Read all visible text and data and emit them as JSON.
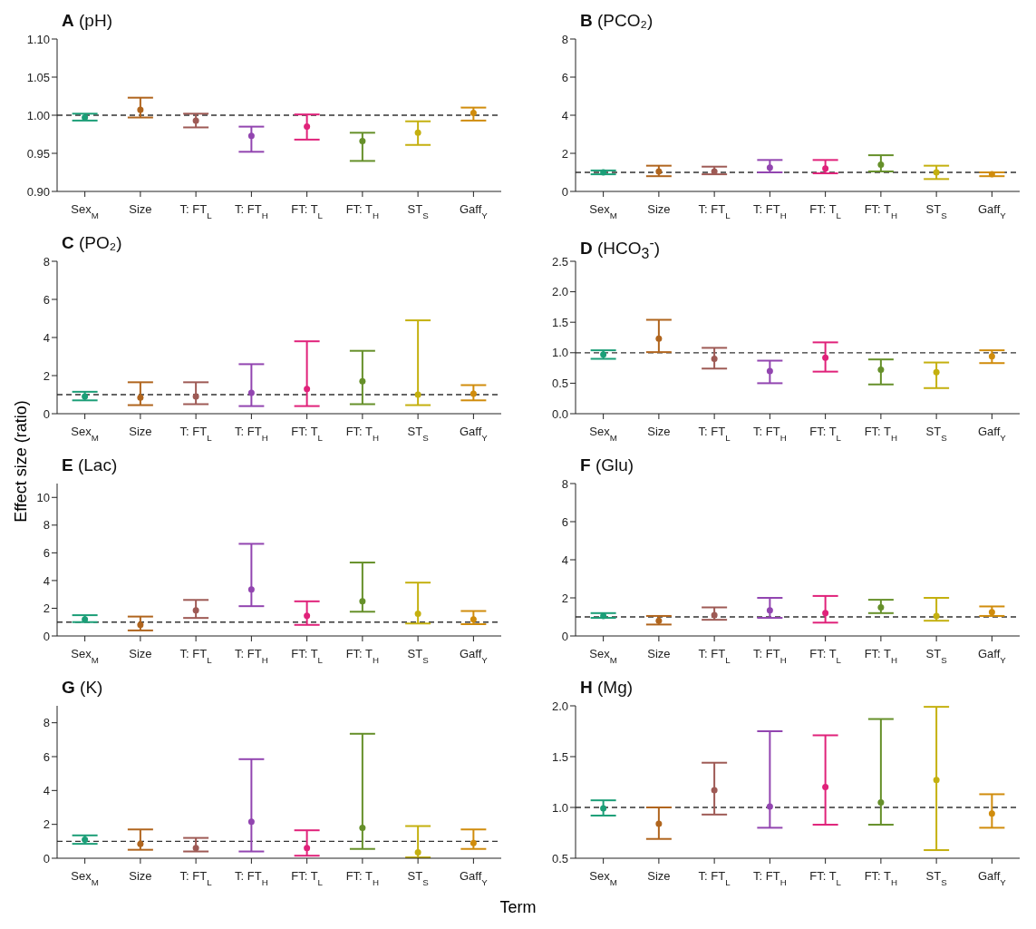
{
  "chart_data": [
    {
      "type": "scatter",
      "title": "A (pH)",
      "categories": [
        "Sex$_{M}$",
        "Size",
        "T: FT$_{L}$",
        "T: FT$_{H}$",
        "FT: T$_{L}$",
        "FT: T$_{H}$",
        "ST$_{S}$",
        "Gaff$_{Y}$"
      ],
      "colors": [
        "#1b9e77",
        "#b0651e",
        "#9e5a55",
        "#9245b0",
        "#e0227a",
        "#66902a",
        "#c4b00f",
        "#d08c0c"
      ],
      "marker": "circle",
      "values": [
        0.997,
        1.007,
        0.993,
        0.973,
        0.985,
        0.966,
        0.977,
        1.003
      ],
      "errors": [
        [
          0.993,
          1.002
        ],
        [
          0.997,
          1.023
        ],
        [
          0.984,
          1.002
        ],
        [
          0.952,
          0.985
        ],
        [
          0.968,
          1.001
        ],
        [
          0.94,
          0.977
        ],
        [
          0.961,
          0.992
        ],
        [
          0.993,
          1.01
        ]
      ],
      "ylim": [
        0.9,
        1.1
      ],
      "yticks": [
        {
          "value": 0.9,
          "label": "0.90"
        },
        {
          "value": 0.95,
          "label": "0.95"
        },
        {
          "value": 1,
          "label": "1.00"
        },
        {
          "value": 1.05,
          "label": "1.05"
        },
        {
          "value": 1.1,
          "label": "1.10"
        }
      ],
      "ref_lines": [
        {
          "axis": "y",
          "value": 1,
          "line_style": "dashed"
        }
      ]
    },
    {
      "type": "scatter",
      "title": "B (PCO₂)",
      "categories": [
        "Sex$_{M}$",
        "Size",
        "T: FT$_{L}$",
        "T: FT$_{H}$",
        "FT: T$_{L}$",
        "FT: T$_{H}$",
        "ST$_{S}$",
        "Gaff$_{Y}$"
      ],
      "colors": [
        "#1b9e77",
        "#b0651e",
        "#9e5a55",
        "#9245b0",
        "#e0227a",
        "#66902a",
        "#c4b00f",
        "#d08c0c"
      ],
      "marker": "circle",
      "values": [
        1.0,
        1.05,
        1.05,
        1.25,
        1.2,
        1.4,
        1.0,
        0.9
      ],
      "errors": [
        [
          0.9,
          1.1
        ],
        [
          0.8,
          1.35
        ],
        [
          0.9,
          1.3
        ],
        [
          1.0,
          1.65
        ],
        [
          0.95,
          1.65
        ],
        [
          1.05,
          1.9
        ],
        [
          0.65,
          1.35
        ],
        [
          0.8,
          1.0
        ]
      ],
      "ylim": [
        0,
        8
      ],
      "yticks": [
        0,
        2,
        4,
        6,
        8
      ],
      "ref_lines": [
        {
          "axis": "y",
          "value": 1,
          "line_style": "dashed"
        }
      ]
    },
    {
      "type": "scatter",
      "title": "C (PO₂)",
      "categories": [
        "Sex$_{M}$",
        "Size",
        "T: FT$_{L}$",
        "T: FT$_{H}$",
        "FT: T$_{L}$",
        "FT: T$_{H}$",
        "ST$_{S}$",
        "Gaff$_{Y}$"
      ],
      "colors": [
        "#1b9e77",
        "#b0651e",
        "#9e5a55",
        "#9245b0",
        "#e0227a",
        "#66902a",
        "#c4b00f",
        "#d08c0c"
      ],
      "marker": "circle",
      "values": [
        0.9,
        0.85,
        0.9,
        1.1,
        1.3,
        1.7,
        1.0,
        1.05
      ],
      "errors": [
        [
          0.7,
          1.15
        ],
        [
          0.45,
          1.65
        ],
        [
          0.5,
          1.65
        ],
        [
          0.4,
          2.6
        ],
        [
          0.4,
          3.8
        ],
        [
          0.5,
          3.3
        ],
        [
          0.45,
          4.9
        ],
        [
          0.7,
          1.5
        ]
      ],
      "ylim": [
        0,
        8
      ],
      "yticks": [
        0,
        2,
        4,
        6,
        8
      ],
      "ref_lines": [
        {
          "axis": "y",
          "value": 1,
          "line_style": "dashed"
        }
      ]
    },
    {
      "type": "scatter",
      "title": "D (HCO$_{3}$$^{-}$)",
      "categories": [
        "Sex$_{M}$",
        "Size",
        "T: FT$_{L}$",
        "T: FT$_{H}$",
        "FT: T$_{L}$",
        "FT: T$_{H}$",
        "ST$_{S}$",
        "Gaff$_{Y}$"
      ],
      "colors": [
        "#1b9e77",
        "#b0651e",
        "#9e5a55",
        "#9245b0",
        "#e0227a",
        "#66902a",
        "#c4b00f",
        "#d08c0c"
      ],
      "marker": "circle",
      "values": [
        0.97,
        1.23,
        0.9,
        0.7,
        0.92,
        0.72,
        0.68,
        0.94
      ],
      "errors": [
        [
          0.9,
          1.04
        ],
        [
          1.01,
          1.54
        ],
        [
          0.74,
          1.08
        ],
        [
          0.5,
          0.87
        ],
        [
          0.69,
          1.17
        ],
        [
          0.48,
          0.89
        ],
        [
          0.42,
          0.84
        ],
        [
          0.83,
          1.04
        ]
      ],
      "ylim": [
        0,
        2.5
      ],
      "yticks": [
        {
          "value": 0,
          "label": "0.0"
        },
        {
          "value": 0.5,
          "label": "0.5"
        },
        {
          "value": 1,
          "label": "1.0"
        },
        {
          "value": 1.5,
          "label": "1.5"
        },
        {
          "value": 2,
          "label": "2.0"
        },
        {
          "value": 2.5,
          "label": "2.5"
        }
      ],
      "ref_lines": [
        {
          "axis": "y",
          "value": 1,
          "line_style": "dashed"
        }
      ]
    },
    {
      "type": "scatter",
      "title": "E (Lac)",
      "ylabel": "Effect size (ratio)",
      "categories": [
        "Sex$_{M}$",
        "Size",
        "T: FT$_{L}$",
        "T: FT$_{H}$",
        "FT: T$_{L}$",
        "FT: T$_{H}$",
        "ST$_{S}$",
        "Gaff$_{Y}$"
      ],
      "colors": [
        "#1b9e77",
        "#b0651e",
        "#9e5a55",
        "#9245b0",
        "#e0227a",
        "#66902a",
        "#c4b00f",
        "#d08c0c"
      ],
      "marker": "circle",
      "values": [
        1.2,
        0.8,
        1.85,
        3.35,
        1.45,
        2.5,
        1.6,
        1.2
      ],
      "errors": [
        [
          1.0,
          1.5
        ],
        [
          0.4,
          1.4
        ],
        [
          1.3,
          2.6
        ],
        [
          2.15,
          6.65
        ],
        [
          0.8,
          2.5
        ],
        [
          1.75,
          5.3
        ],
        [
          0.9,
          3.85
        ],
        [
          0.85,
          1.8
        ]
      ],
      "ylim": [
        0,
        11
      ],
      "yticks": [
        0,
        2,
        4,
        6,
        8,
        10
      ],
      "ref_lines": [
        {
          "axis": "y",
          "value": 1,
          "line_style": "dashed"
        }
      ]
    },
    {
      "type": "scatter",
      "title": "F (Glu)",
      "categories": [
        "Sex$_{M}$",
        "Size",
        "T: FT$_{L}$",
        "T: FT$_{H}$",
        "FT: T$_{L}$",
        "FT: T$_{H}$",
        "ST$_{S}$",
        "Gaff$_{Y}$"
      ],
      "colors": [
        "#1b9e77",
        "#b0651e",
        "#9e5a55",
        "#9245b0",
        "#e0227a",
        "#66902a",
        "#c4b00f",
        "#d08c0c"
      ],
      "marker": "circle",
      "values": [
        1.05,
        0.8,
        1.1,
        1.35,
        1.2,
        1.5,
        1.05,
        1.25
      ],
      "errors": [
        [
          0.95,
          1.2
        ],
        [
          0.6,
          1.05
        ],
        [
          0.85,
          1.5
        ],
        [
          0.95,
          2.0
        ],
        [
          0.7,
          2.1
        ],
        [
          1.2,
          1.9
        ],
        [
          0.8,
          2.0
        ],
        [
          1.05,
          1.55
        ]
      ],
      "ylim": [
        0,
        8
      ],
      "yticks": [
        0,
        2,
        4,
        6,
        8
      ],
      "ref_lines": [
        {
          "axis": "y",
          "value": 1,
          "line_style": "dashed"
        }
      ]
    },
    {
      "type": "scatter",
      "title": "G (K)",
      "xlabel": "Term",
      "categories": [
        "Sex$_{M}$",
        "Size",
        "T: FT$_{L}$",
        "T: FT$_{H}$",
        "FT: T$_{L}$",
        "FT: T$_{H}$",
        "ST$_{S}$",
        "Gaff$_{Y}$"
      ],
      "colors": [
        "#1b9e77",
        "#b0651e",
        "#9e5a55",
        "#9245b0",
        "#e0227a",
        "#66902a",
        "#c4b00f",
        "#d08c0c"
      ],
      "marker": "circle",
      "values": [
        1.1,
        0.85,
        0.6,
        2.15,
        0.6,
        1.8,
        0.35,
        0.9
      ],
      "errors": [
        [
          0.85,
          1.35
        ],
        [
          0.5,
          1.7
        ],
        [
          0.4,
          1.2
        ],
        [
          0.4,
          5.85
        ],
        [
          0.15,
          1.65
        ],
        [
          0.55,
          7.35
        ],
        [
          0.05,
          1.9
        ],
        [
          0.55,
          1.7
        ]
      ],
      "ylim": [
        0,
        9
      ],
      "yticks": [
        0,
        2,
        4,
        6,
        8
      ],
      "ref_lines": [
        {
          "axis": "y",
          "value": 1,
          "line_style": "dashed"
        }
      ]
    },
    {
      "type": "scatter",
      "title": "H (Mg)",
      "categories": [
        "Sex$_{M}$",
        "Size",
        "T: FT$_{L}$",
        "T: FT$_{H}$",
        "FT: T$_{L}$",
        "FT: T$_{H}$",
        "ST$_{S}$",
        "Gaff$_{Y}$"
      ],
      "colors": [
        "#1b9e77",
        "#b0651e",
        "#9e5a55",
        "#9245b0",
        "#e0227a",
        "#66902a",
        "#c4b00f",
        "#d08c0c"
      ],
      "marker": "circle",
      "values": [
        0.99,
        0.84,
        1.17,
        1.01,
        1.2,
        1.05,
        1.27,
        0.94
      ],
      "errors": [
        [
          0.92,
          1.07
        ],
        [
          0.69,
          1.0
        ],
        [
          0.93,
          1.44
        ],
        [
          0.8,
          1.75
        ],
        [
          0.83,
          1.71
        ],
        [
          0.83,
          1.87
        ],
        [
          0.58,
          1.99
        ],
        [
          0.8,
          1.13
        ]
      ],
      "ylim": [
        0.5,
        2.0
      ],
      "yticks": [
        {
          "value": 0.5,
          "label": "0.5"
        },
        {
          "value": 1,
          "label": "1.0"
        },
        {
          "value": 1.5,
          "label": "1.5"
        },
        {
          "value": 2,
          "label": "2.0"
        }
      ],
      "ref_lines": [
        {
          "axis": "y",
          "value": 1,
          "line_style": "dashed"
        }
      ]
    }
  ]
}
